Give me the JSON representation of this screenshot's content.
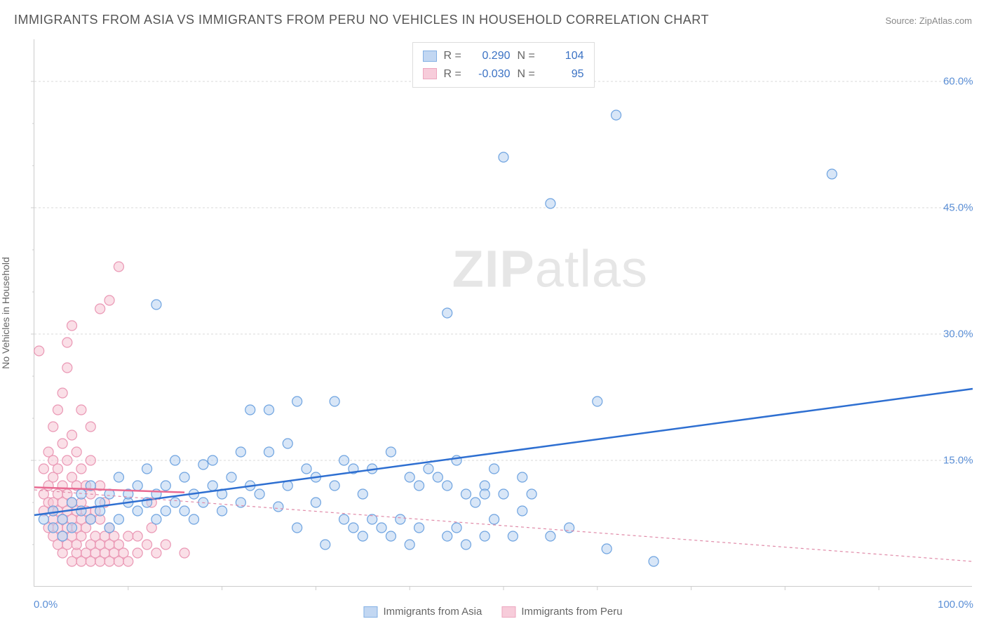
{
  "title": "IMMIGRANTS FROM ASIA VS IMMIGRANTS FROM PERU NO VEHICLES IN HOUSEHOLD CORRELATION CHART",
  "source": "Source: ZipAtlas.com",
  "watermark_a": "ZIP",
  "watermark_b": "atlas",
  "ylabel": "No Vehicles in Household",
  "chart": {
    "type": "scatter",
    "xlim": [
      0,
      100
    ],
    "ylim": [
      0,
      65
    ],
    "x_tick_start": "0.0%",
    "x_tick_end": "100.0%",
    "y_ticks": [
      {
        "v": 15,
        "label": "15.0%"
      },
      {
        "v": 30,
        "label": "30.0%"
      },
      {
        "v": 45,
        "label": "45.0%"
      },
      {
        "v": 60,
        "label": "60.0%"
      }
    ],
    "y_minor_ticks": [
      5,
      10,
      20,
      25,
      35,
      40,
      50,
      55
    ],
    "x_minor_ticks": [
      10,
      20,
      30,
      40,
      50,
      60,
      70,
      80,
      90
    ],
    "grid_color": "#d8d8d8",
    "background_color": "#ffffff",
    "marker_radius": 7,
    "marker_stroke_width": 1.2,
    "trend_line_width_solid": 2.5,
    "trend_line_width_dashed": 1.2,
    "series": {
      "asia": {
        "label": "Immigrants from Asia",
        "fill": "#b8d1f0",
        "stroke": "#6ea3e0",
        "fill_opacity": 0.55,
        "R": "0.290",
        "N": "104",
        "stat_color": "#3b72c4",
        "trend": {
          "x1": 0,
          "y1": 8.5,
          "x2": 100,
          "y2": 23.5,
          "color": "#2e6fd1",
          "dash": "none"
        },
        "points": [
          [
            1,
            8
          ],
          [
            2,
            7
          ],
          [
            2,
            9
          ],
          [
            3,
            6
          ],
          [
            3,
            8
          ],
          [
            4,
            7
          ],
          [
            4,
            10
          ],
          [
            5,
            9
          ],
          [
            5,
            11
          ],
          [
            6,
            8
          ],
          [
            6,
            12
          ],
          [
            7,
            10
          ],
          [
            7,
            9
          ],
          [
            8,
            7
          ],
          [
            8,
            11
          ],
          [
            9,
            8
          ],
          [
            9,
            13
          ],
          [
            10,
            10
          ],
          [
            10,
            11
          ],
          [
            11,
            9
          ],
          [
            11,
            12
          ],
          [
            12,
            10
          ],
          [
            12,
            14
          ],
          [
            13,
            8
          ],
          [
            13,
            11
          ],
          [
            14,
            9
          ],
          [
            14,
            12
          ],
          [
            15,
            10
          ],
          [
            15,
            15
          ],
          [
            16,
            9
          ],
          [
            16,
            13
          ],
          [
            17,
            11
          ],
          [
            17,
            8
          ],
          [
            18,
            10
          ],
          [
            18,
            14.5
          ],
          [
            19,
            12
          ],
          [
            19,
            15
          ],
          [
            20,
            9
          ],
          [
            20,
            11
          ],
          [
            21,
            13
          ],
          [
            22,
            16
          ],
          [
            22,
            10
          ],
          [
            23,
            12
          ],
          [
            23,
            21
          ],
          [
            24,
            11
          ],
          [
            25,
            16
          ],
          [
            25,
            21
          ],
          [
            26,
            9.5
          ],
          [
            27,
            12
          ],
          [
            27,
            17
          ],
          [
            28,
            7
          ],
          [
            28,
            22
          ],
          [
            29,
            14
          ],
          [
            30,
            10
          ],
          [
            30,
            13
          ],
          [
            31,
            5
          ],
          [
            32,
            12
          ],
          [
            32,
            22
          ],
          [
            33,
            15
          ],
          [
            34,
            7
          ],
          [
            34,
            14
          ],
          [
            35,
            6
          ],
          [
            35,
            11
          ],
          [
            36,
            8
          ],
          [
            36,
            14
          ],
          [
            37,
            7
          ],
          [
            38,
            6
          ],
          [
            38,
            16
          ],
          [
            39,
            8
          ],
          [
            40,
            13
          ],
          [
            40,
            5
          ],
          [
            41,
            7
          ],
          [
            42,
            14
          ],
          [
            43,
            13
          ],
          [
            44,
            6
          ],
          [
            44,
            12
          ],
          [
            45,
            7
          ],
          [
            46,
            11
          ],
          [
            46,
            5
          ],
          [
            47,
            10
          ],
          [
            48,
            6
          ],
          [
            48,
            12
          ],
          [
            49,
            8
          ],
          [
            50,
            11
          ],
          [
            51,
            6
          ],
          [
            52,
            9
          ],
          [
            53,
            11
          ],
          [
            57,
            7
          ],
          [
            60,
            22
          ],
          [
            61,
            4.5
          ],
          [
            13,
            33.5
          ],
          [
            44,
            32.5
          ],
          [
            50,
            51
          ],
          [
            55,
            45.5
          ],
          [
            62,
            56
          ],
          [
            85,
            49
          ],
          [
            66,
            3
          ],
          [
            55,
            6
          ],
          [
            49,
            14
          ],
          [
            52,
            13
          ],
          [
            45,
            15
          ],
          [
            41,
            12
          ],
          [
            33,
            8
          ],
          [
            48,
            11
          ]
        ]
      },
      "peru": {
        "label": "Immigrants from Peru",
        "fill": "#f6c4d4",
        "stroke": "#ea97b4",
        "fill_opacity": 0.55,
        "R": "-0.030",
        "N": "95",
        "stat_color": "#3b72c4",
        "trend": {
          "x1": 0,
          "y1": 11.5,
          "x2": 100,
          "y2": 3.0,
          "color": "#e08aa8",
          "dash": "4,4"
        },
        "trend_solid": {
          "x1": 0,
          "y1": 11.8,
          "x2": 16,
          "y2": 11.2,
          "color": "#e96a92"
        },
        "points": [
          [
            0.5,
            28
          ],
          [
            1,
            9
          ],
          [
            1,
            11
          ],
          [
            1,
            14
          ],
          [
            1.5,
            7
          ],
          [
            1.5,
            10
          ],
          [
            1.5,
            12
          ],
          [
            1.5,
            16
          ],
          [
            2,
            6
          ],
          [
            2,
            8
          ],
          [
            2,
            9
          ],
          [
            2,
            10
          ],
          [
            2,
            13
          ],
          [
            2,
            15
          ],
          [
            2,
            19
          ],
          [
            2.5,
            5
          ],
          [
            2.5,
            7
          ],
          [
            2.5,
            9
          ],
          [
            2.5,
            11
          ],
          [
            2.5,
            14
          ],
          [
            2.5,
            21
          ],
          [
            3,
            4
          ],
          [
            3,
            6
          ],
          [
            3,
            8
          ],
          [
            3,
            10
          ],
          [
            3,
            12
          ],
          [
            3,
            17
          ],
          [
            3,
            23
          ],
          [
            3.5,
            5
          ],
          [
            3.5,
            7
          ],
          [
            3.5,
            9
          ],
          [
            3.5,
            11
          ],
          [
            3.5,
            15
          ],
          [
            3.5,
            26
          ],
          [
            3.5,
            29
          ],
          [
            4,
            3
          ],
          [
            4,
            6
          ],
          [
            4,
            8
          ],
          [
            4,
            10
          ],
          [
            4,
            13
          ],
          [
            4,
            18
          ],
          [
            4,
            31
          ],
          [
            4.5,
            4
          ],
          [
            4.5,
            5
          ],
          [
            4.5,
            7
          ],
          [
            4.5,
            9
          ],
          [
            4.5,
            12
          ],
          [
            4.5,
            16
          ],
          [
            5,
            3
          ],
          [
            5,
            6
          ],
          [
            5,
            8
          ],
          [
            5,
            10
          ],
          [
            5,
            14
          ],
          [
            5,
            21
          ],
          [
            5.5,
            4
          ],
          [
            5.5,
            7
          ],
          [
            5.5,
            9
          ],
          [
            5.5,
            12
          ],
          [
            6,
            3
          ],
          [
            6,
            5
          ],
          [
            6,
            8
          ],
          [
            6,
            11
          ],
          [
            6,
            15
          ],
          [
            6,
            19
          ],
          [
            6.5,
            4
          ],
          [
            6.5,
            6
          ],
          [
            6.5,
            9
          ],
          [
            7,
            3
          ],
          [
            7,
            5
          ],
          [
            7,
            8
          ],
          [
            7,
            12
          ],
          [
            7,
            33
          ],
          [
            7.5,
            4
          ],
          [
            7.5,
            6
          ],
          [
            7.5,
            10
          ],
          [
            8,
            3
          ],
          [
            8,
            5
          ],
          [
            8,
            7
          ],
          [
            8,
            34
          ],
          [
            8.5,
            4
          ],
          [
            8.5,
            6
          ],
          [
            9,
            3
          ],
          [
            9,
            5
          ],
          [
            9,
            38
          ],
          [
            9.5,
            4
          ],
          [
            10,
            3
          ],
          [
            10,
            6
          ],
          [
            11,
            4
          ],
          [
            11,
            6
          ],
          [
            12,
            5
          ],
          [
            12.5,
            7
          ],
          [
            12.5,
            10
          ],
          [
            13,
            4
          ],
          [
            14,
            5
          ],
          [
            16,
            4
          ]
        ]
      }
    }
  },
  "legend_labels": {
    "R": "R =",
    "N": "N ="
  }
}
